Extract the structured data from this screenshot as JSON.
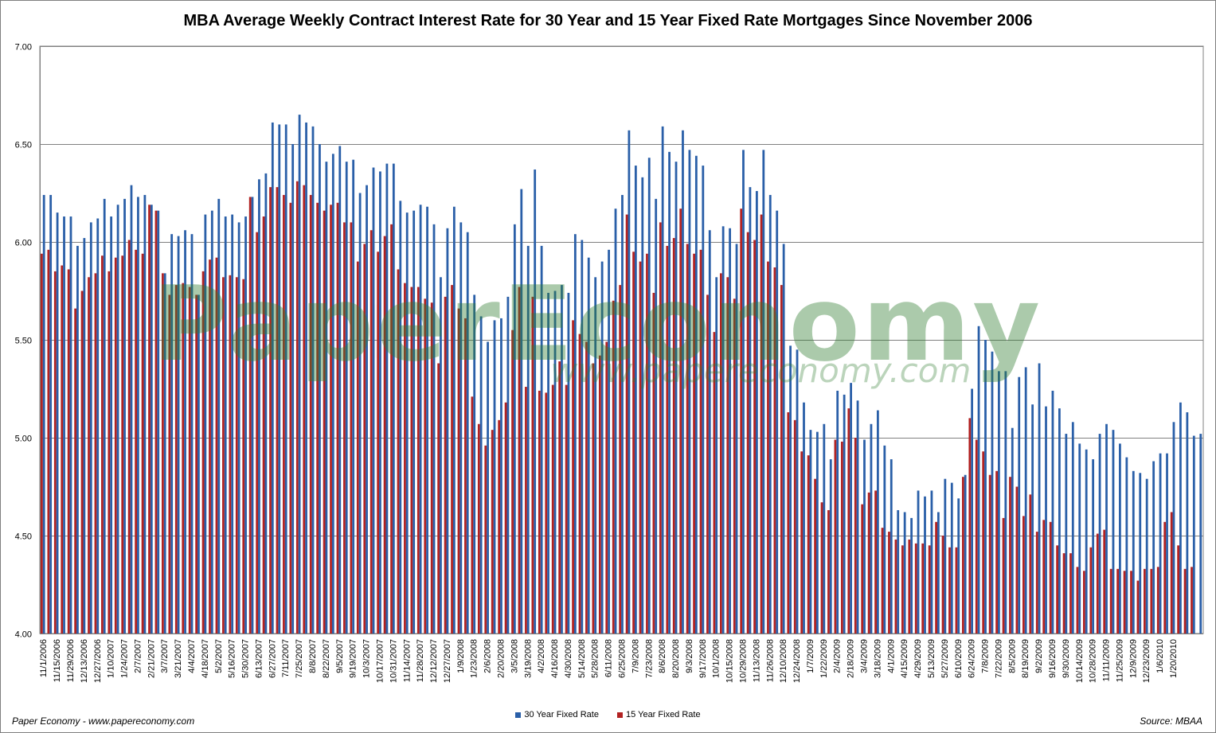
{
  "chart_data": {
    "type": "bar",
    "title": "MBA Average Weekly Contract Interest Rate for 30 Year and 15 Year Fixed Rate Mortgages Since November 2006",
    "xlabel": "",
    "ylabel": "",
    "ylim": [
      4.0,
      7.0
    ],
    "yticks": [
      "4.00",
      "4.50",
      "5.00",
      "5.50",
      "6.00",
      "6.50",
      "7.00"
    ],
    "grid": true,
    "legend_position": "bottom",
    "start_date": "2006-11-01",
    "tick_labels": [
      "11/1/2006",
      "11/15/2006",
      "11/29/2006",
      "12/13/2006",
      "12/27/2006",
      "1/10/2007",
      "1/24/2007",
      "2/7/2007",
      "2/21/2007",
      "3/7/2007",
      "3/21/2007",
      "4/4/2007",
      "4/18/2007",
      "5/2/2007",
      "5/16/2007",
      "5/30/2007",
      "6/13/2007",
      "6/27/2007",
      "7/11/2007",
      "7/25/2007",
      "8/8/2007",
      "8/22/2007",
      "9/5/2007",
      "9/19/2007",
      "10/3/2007",
      "10/17/2007",
      "10/31/2007",
      "11/14/2007",
      "11/28/2007",
      "12/12/2007",
      "12/27/2007",
      "1/9/2008",
      "1/23/2008",
      "2/6/2008",
      "2/20/2008",
      "3/5/2008",
      "3/19/2008",
      "4/2/2008",
      "4/16/2008",
      "4/30/2008",
      "5/14/2008",
      "5/28/2008",
      "6/11/2008",
      "6/25/2008",
      "7/9/2008",
      "7/23/2008",
      "8/6/2008",
      "8/20/2008",
      "9/3/2008",
      "9/17/2008",
      "10/1/2008",
      "10/15/2008",
      "10/29/2008",
      "11/13/2008",
      "11/26/2008",
      "12/10/2008",
      "12/24/2008",
      "1/7/2009",
      "1/22/2009",
      "2/4/2009",
      "2/18/2009",
      "3/4/2009",
      "3/18/2009",
      "4/1/2009",
      "4/15/2009",
      "4/29/2009",
      "5/13/2009",
      "5/27/2009",
      "6/10/2009",
      "6/24/2009",
      "7/8/2009",
      "7/22/2009",
      "8/5/2009",
      "8/19/2009",
      "9/2/2009",
      "9/16/2009",
      "9/30/2009",
      "10/14/2009",
      "10/28/2009",
      "11/11/2009",
      "11/25/2009",
      "12/9/2009",
      "12/23/2009",
      "1/6/2010",
      "1/20/2010"
    ],
    "series": [
      {
        "name": "30 Year Fixed Rate",
        "color": "#2a5fa8",
        "values": [
          6.24,
          6.24,
          6.15,
          6.13,
          6.13,
          5.98,
          6.02,
          6.1,
          6.12,
          6.22,
          6.13,
          6.19,
          6.22,
          6.29,
          6.23,
          6.24,
          6.19,
          6.16,
          5.84,
          6.04,
          6.03,
          6.06,
          6.04,
          5.73,
          6.14,
          6.16,
          6.22,
          6.13,
          6.14,
          6.1,
          6.13,
          6.23,
          6.32,
          6.35,
          6.61,
          6.6,
          6.6,
          6.5,
          6.65,
          6.61,
          6.59,
          6.5,
          6.41,
          6.45,
          6.49,
          6.41,
          6.42,
          6.25,
          6.29,
          6.38,
          6.36,
          6.4,
          6.4,
          6.21,
          6.15,
          6.16,
          6.19,
          6.18,
          6.09,
          5.82,
          6.07,
          6.18,
          6.1,
          6.05,
          5.73,
          5.62,
          5.49,
          5.6,
          5.61,
          5.72,
          6.09,
          6.27,
          5.98,
          6.37,
          5.98,
          5.74,
          5.75,
          5.78,
          5.74,
          6.04,
          6.01,
          5.92,
          5.82,
          5.9,
          5.96,
          6.17,
          6.24,
          6.57,
          6.39,
          6.33,
          6.43,
          6.22,
          6.59,
          6.46,
          6.41,
          6.57,
          6.47,
          6.44,
          6.39,
          6.06,
          5.82,
          6.08,
          6.07,
          5.99,
          6.47,
          6.28,
          6.26,
          6.47,
          6.24,
          6.16,
          5.99,
          5.47,
          5.45,
          5.18,
          5.04,
          5.03,
          5.07,
          4.89,
          5.24,
          5.22,
          5.28,
          5.19,
          4.99,
          5.07,
          5.14,
          4.96,
          4.89,
          4.63,
          4.62,
          4.59,
          4.73,
          4.7,
          4.73,
          4.62,
          4.79,
          4.77,
          4.69,
          4.81,
          5.25,
          5.57,
          5.5,
          5.44,
          5.34,
          5.34,
          5.05,
          5.31,
          5.36,
          5.17,
          5.38,
          5.16,
          5.24,
          5.15,
          5.02,
          5.08,
          4.97,
          4.94,
          4.89,
          5.02,
          5.07,
          5.04,
          4.97,
          4.9,
          4.83,
          4.82,
          4.79,
          4.88,
          4.92,
          4.92,
          5.08,
          5.18,
          5.13,
          5.01,
          5.02
        ]
      },
      {
        "name": "15 Year Fixed Rate",
        "color": "#b22222",
        "values": [
          5.94,
          5.96,
          5.85,
          5.88,
          5.86,
          5.66,
          5.75,
          5.82,
          5.84,
          5.93,
          5.85,
          5.92,
          5.93,
          6.01,
          5.96,
          5.94,
          6.19,
          6.16,
          5.84,
          5.73,
          5.78,
          5.79,
          5.77,
          5.73,
          5.85,
          5.91,
          5.92,
          5.82,
          5.83,
          5.82,
          5.81,
          6.23,
          6.05,
          6.13,
          6.28,
          6.28,
          6.24,
          6.2,
          6.31,
          6.29,
          6.24,
          6.2,
          6.16,
          6.19,
          6.2,
          6.1,
          6.1,
          5.9,
          5.99,
          6.06,
          5.95,
          6.03,
          6.09,
          5.86,
          5.79,
          5.77,
          5.77,
          5.71,
          5.69,
          5.38,
          5.72,
          5.78,
          5.66,
          5.61,
          5.21,
          5.07,
          4.96,
          5.04,
          5.09,
          5.18,
          5.55,
          5.77,
          5.26,
          5.72,
          5.24,
          5.23,
          5.27,
          5.39,
          5.27,
          5.6,
          5.53,
          5.49,
          5.38,
          5.42,
          5.49,
          5.7,
          5.78,
          6.14,
          5.95,
          5.9,
          5.94,
          5.74,
          6.1,
          5.98,
          6.02,
          6.17,
          5.99,
          5.94,
          5.96,
          5.73,
          5.54,
          5.84,
          5.82,
          5.71,
          6.17,
          6.05,
          6.01,
          6.14,
          5.9,
          5.87,
          5.78,
          5.13,
          5.09,
          4.93,
          4.91,
          4.79,
          4.67,
          4.63,
          4.99,
          4.98,
          5.15,
          5.0,
          4.66,
          4.72,
          4.73,
          4.54,
          4.52,
          4.48,
          4.45,
          4.48,
          4.46,
          4.46,
          4.45,
          4.57,
          4.5,
          4.44,
          4.44,
          4.8,
          5.1,
          4.99,
          4.93,
          4.81,
          4.83,
          4.59,
          4.8,
          4.75,
          4.6,
          4.71,
          4.52,
          4.58,
          4.57,
          4.45,
          4.41,
          4.41,
          4.34,
          4.32,
          4.44,
          4.51,
          4.53,
          4.33,
          4.33,
          4.32,
          4.32,
          4.27,
          4.33,
          4.33,
          4.34,
          4.57,
          4.62,
          4.45,
          4.33,
          4.34
        ]
      }
    ]
  },
  "watermark": {
    "main": "PaperEconomy",
    "url": "www.papereconomy.com"
  },
  "footer": {
    "left": "Paper Economy - www.papereconomy.com",
    "right": "Source: MBAA"
  }
}
